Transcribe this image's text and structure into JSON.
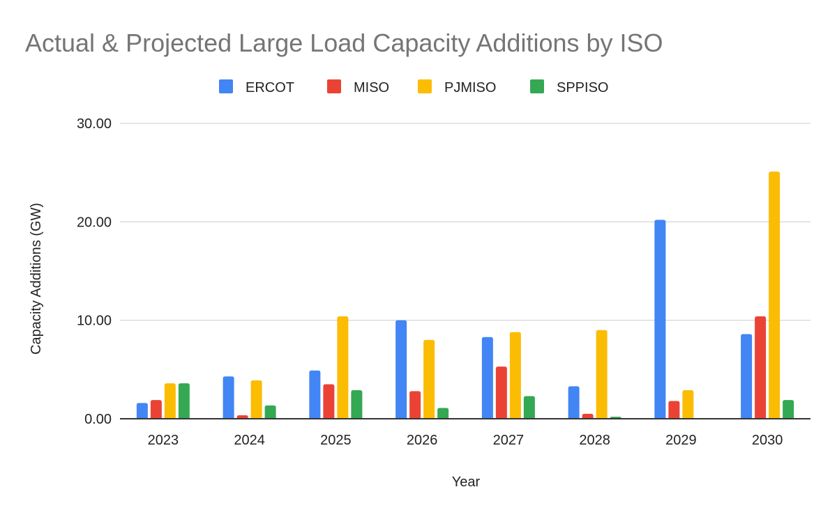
{
  "chart_data": {
    "type": "bar",
    "title": "Actual & Projected Large Load Capacity Additions by ISO",
    "xlabel": "Year",
    "ylabel": "Capacity Additions (GW)",
    "ylim": [
      0,
      30
    ],
    "yticks": [
      "0.00",
      "10.00",
      "20.00",
      "30.00"
    ],
    "grid": true,
    "legend_position": "top",
    "categories": [
      "2023",
      "2024",
      "2025",
      "2026",
      "2027",
      "2028",
      "2029",
      "2030"
    ],
    "series": [
      {
        "name": "ERCOT",
        "color": "#4285f4",
        "values": [
          1.6,
          4.3,
          4.9,
          10.0,
          8.3,
          3.3,
          20.2,
          8.6
        ]
      },
      {
        "name": "MISO",
        "color": "#ea4335",
        "values": [
          1.9,
          0.35,
          3.5,
          2.8,
          5.3,
          0.5,
          1.8,
          10.4
        ]
      },
      {
        "name": "PJMISO",
        "color": "#fbbc04",
        "values": [
          3.6,
          3.9,
          10.4,
          8.0,
          8.8,
          9.0,
          2.9,
          25.1
        ]
      },
      {
        "name": "SPPISO",
        "color": "#34a853",
        "values": [
          3.6,
          1.35,
          2.9,
          1.1,
          2.3,
          0.2,
          0,
          1.9
        ]
      }
    ]
  }
}
